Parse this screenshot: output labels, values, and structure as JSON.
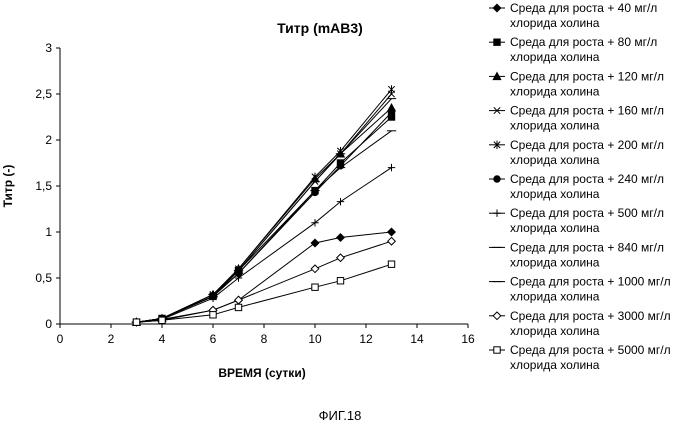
{
  "chart_data": {
    "type": "line",
    "title": "Титр (mAB3)",
    "xlabel": "ВРЕМЯ (сутки)",
    "ylabel": "Титр (-)",
    "xlim": [
      0,
      16
    ],
    "ylim": [
      0,
      3
    ],
    "x_ticks": [
      "0",
      "2",
      "4",
      "6",
      "8",
      "10",
      "12",
      "14",
      "16"
    ],
    "y_ticks": [
      "0",
      "0,5",
      "1",
      "1,5",
      "2",
      "2,5",
      "3"
    ],
    "grid": false,
    "legend_position": "right",
    "x": [
      3,
      4,
      6,
      7,
      10,
      11,
      13
    ],
    "series": [
      {
        "name": "Среда для роста + 40 мг/л хлорида холина",
        "marker": "diamond-filled",
        "values": [
          0.02,
          0.05,
          0.15,
          0.26,
          0.88,
          0.94,
          1.0
        ]
      },
      {
        "name": "Среда для роста + 80 мг/л хлорида холина",
        "marker": "square-filled",
        "values": [
          0.02,
          0.06,
          0.3,
          0.58,
          1.45,
          1.75,
          2.25
        ]
      },
      {
        "name": "Среда для роста + 120 мг/л хлорида холина",
        "marker": "triangle-filled",
        "values": [
          0.02,
          0.06,
          0.32,
          0.6,
          1.58,
          1.85,
          2.35
        ]
      },
      {
        "name": "Среда для роста + 160 мг/л хлорида холина",
        "marker": "x",
        "values": [
          0.02,
          0.06,
          0.3,
          0.58,
          1.55,
          1.85,
          2.5
        ]
      },
      {
        "name": "Среда для роста + 200 мг/л хлорида холина",
        "marker": "star",
        "values": [
          0.02,
          0.06,
          0.32,
          0.6,
          1.6,
          1.88,
          2.55
        ]
      },
      {
        "name": "Среда для роста + 240 мг/л хлорида холина",
        "marker": "circle-filled",
        "values": [
          0.02,
          0.06,
          0.3,
          0.55,
          1.43,
          1.72,
          2.3
        ]
      },
      {
        "name": "Среда для роста + 500 мг/л хлорида холина",
        "marker": "plus",
        "values": [
          0.02,
          0.05,
          0.28,
          0.5,
          1.1,
          1.33,
          1.7
        ]
      },
      {
        "name": "Среда для роста + 840 мг/л хлорида холина",
        "marker": "dash",
        "values": [
          0.02,
          0.06,
          0.3,
          0.55,
          1.45,
          1.7,
          2.1
        ]
      },
      {
        "name": "Среда для роста + 1000 мг/л хлорида холина",
        "marker": "dash",
        "values": [
          0.02,
          0.06,
          0.32,
          0.58,
          1.55,
          1.85,
          2.45
        ]
      },
      {
        "name": "Среда для роста + 3000 мг/л хлорида холина",
        "marker": "diamond-open",
        "values": [
          0.02,
          0.04,
          0.15,
          0.26,
          0.6,
          0.72,
          0.9
        ]
      },
      {
        "name": "Среда для роста + 5000 мг/л хлорида холина",
        "marker": "square-open",
        "values": [
          0.02,
          0.04,
          0.1,
          0.18,
          0.4,
          0.47,
          0.65
        ]
      }
    ]
  },
  "figure_label": "ФИГ.18"
}
